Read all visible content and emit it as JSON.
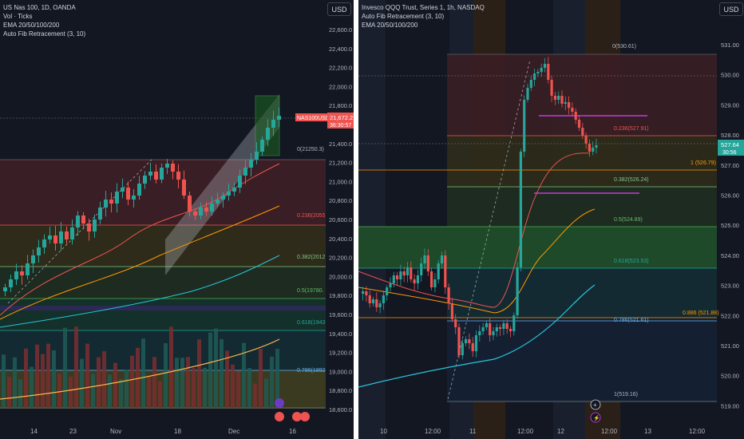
{
  "left_chart": {
    "legend": [
      "US Nas 100, 1D, OANDA",
      "Vol · Ticks",
      "EMA 20/50/100/200",
      "Auto Fib Retracement (3, 10)"
    ],
    "currency_button": "USD",
    "price_ticks": [
      "22,600.0",
      "22,400.0",
      "22,200.0",
      "22,000.0",
      "21,800.0",
      "21,600.0",
      "21,400.0",
      "21,200.0",
      "21,000.0",
      "20,800.0",
      "20,600.0",
      "20,400.0",
      "20,200.0",
      "20,000.0",
      "19,800.0",
      "19,600.0",
      "19,400.0",
      "19,200.0",
      "19,000.0",
      "18,800.0",
      "18,600.0"
    ],
    "time_ticks": [
      "14",
      "23",
      "Nov",
      "18",
      "Dec",
      "16"
    ],
    "fib_labels": [
      "0(21250.3)",
      "0.236(2055",
      "0.382(2012",
      "0.5(19780.",
      "0.618(1943",
      "0.786(1892"
    ],
    "symbol_tag": "NAS100USD",
    "last_price": "21,672.2",
    "countdown": "36:30:57",
    "colors": {
      "up": "#26a69a",
      "down": "#ef5350",
      "bg": "#131722"
    }
  },
  "right_chart": {
    "legend": [
      "Invesco QQQ Trust, Series 1, 1h, NASDAQ",
      "Auto Fib Retracement (3, 10)",
      "EMA 20/50/100/200"
    ],
    "currency_button": "USD",
    "price_ticks": [
      "531.00",
      "530.00",
      "529.00",
      "528.00",
      "527.00",
      "526.00",
      "525.00",
      "524.00",
      "523.00",
      "522.00",
      "521.00",
      "520.00",
      "519.00"
    ],
    "time_ticks": [
      "10",
      "12:00",
      "11",
      "12:00",
      "12",
      "12:00",
      "13",
      "12:00"
    ],
    "fib_labels": [
      "0(530.61)",
      "0.236(527.91)",
      "1 (526.79)",
      "0.382(526.24)",
      "0.5(524.89)",
      "0.618(523.53)",
      "0.886 (521.88)",
      "0.786(521.61)",
      "1(519.16)"
    ],
    "last_price": "527.64",
    "countdown": "30:56"
  }
}
